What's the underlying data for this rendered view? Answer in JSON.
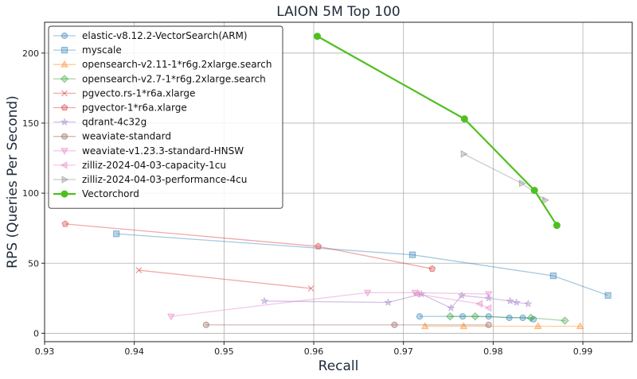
{
  "chart_data": {
    "type": "line",
    "title": "LAION 5M Top 100",
    "xlabel": "Recall",
    "ylabel": "RPS (Queries Per Second)",
    "xlim": [
      0.93,
      0.9955
    ],
    "ylim": [
      -6,
      222
    ],
    "xticks": [
      0.93,
      0.94,
      0.95,
      0.96,
      0.97,
      0.98,
      0.99
    ],
    "xtick_labels": [
      "0.93",
      "0.94",
      "0.95",
      "0.96",
      "0.97",
      "0.98",
      "0.99"
    ],
    "yticks": [
      0,
      50,
      100,
      150,
      200
    ],
    "ytick_labels": [
      "0",
      "50",
      "100",
      "150",
      "200"
    ],
    "grid": true,
    "legend_position": "top-left",
    "series": [
      {
        "name": "elastic-v8.12.2-VectorSearch(ARM)",
        "color": "#1f77b4",
        "marker": "circle",
        "x": [
          0.9718,
          0.9766,
          0.9795,
          0.9818,
          0.9833,
          0.9845
        ],
        "y": [
          12,
          12,
          12,
          11,
          11,
          10
        ]
      },
      {
        "name": "myscale",
        "color": "#1f77b4",
        "marker": "square",
        "x": [
          0.938,
          0.971,
          0.9867,
          0.9928
        ],
        "y": [
          71,
          56,
          41,
          27
        ]
      },
      {
        "name": "opensearch-v2.11-1*r6g.2xlarge.search",
        "color": "#ff7f0e",
        "marker": "triangle-up",
        "x": [
          0.9724,
          0.9767,
          0.985,
          0.9897
        ],
        "y": [
          5,
          5,
          5,
          5
        ]
      },
      {
        "name": "opensearch-v2.7-1*r6g.2xlarge.search",
        "color": "#2ca02c",
        "marker": "diamond",
        "x": [
          0.9752,
          0.978,
          0.9842,
          0.988
        ],
        "y": [
          12,
          12,
          11,
          9
        ]
      },
      {
        "name": "pgvecto.rs-1*r6a.xlarge",
        "color": "#d62728",
        "marker": "x",
        "x": [
          0.9405,
          0.9597
        ],
        "y": [
          45,
          32
        ]
      },
      {
        "name": "pgvector-1*r6a.xlarge",
        "color": "#d62728",
        "marker": "pentagon",
        "x": [
          0.9323,
          0.9605,
          0.9732
        ],
        "y": [
          78,
          62,
          46
        ]
      },
      {
        "name": "qdrant-4c32g",
        "color": "#9467bd",
        "marker": "star",
        "x": [
          0.9545,
          0.9683,
          0.972,
          0.9753,
          0.9765,
          0.9795,
          0.9819,
          0.9826,
          0.9839
        ],
        "y": [
          23,
          22,
          28,
          18,
          27,
          25,
          23,
          22,
          21
        ]
      },
      {
        "name": "weaviate-standard",
        "color": "#8c564b",
        "marker": "circle",
        "x": [
          0.948,
          0.969,
          0.9795
        ],
        "y": [
          6,
          6,
          6
        ]
      },
      {
        "name": "weaviate-v1.23.3-standard-HNSW",
        "color": "#e377c2",
        "marker": "triangle-down",
        "x": [
          0.9441,
          0.966,
          0.9713,
          0.9795
        ],
        "y": [
          12,
          29,
          29,
          28
        ]
      },
      {
        "name": "zilliz-2024-04-03-capacity-1cu",
        "color": "#e377c2",
        "marker": "triangle-left",
        "x": [
          0.9715,
          0.9785,
          0.9795
        ],
        "y": [
          28,
          21,
          18
        ]
      },
      {
        "name": "zilliz-2024-04-03-performance-4cu",
        "color": "#7f7f7f",
        "marker": "triangle-right",
        "x": [
          0.9767,
          0.9832,
          0.9858
        ],
        "y": [
          128,
          107,
          95
        ]
      },
      {
        "name": "Vectorchord",
        "color": "#4fc020",
        "marker": "circle-bold",
        "x": [
          0.9604,
          0.9768,
          0.9846,
          0.9871
        ],
        "y": [
          212,
          153,
          102,
          77
        ]
      }
    ]
  }
}
